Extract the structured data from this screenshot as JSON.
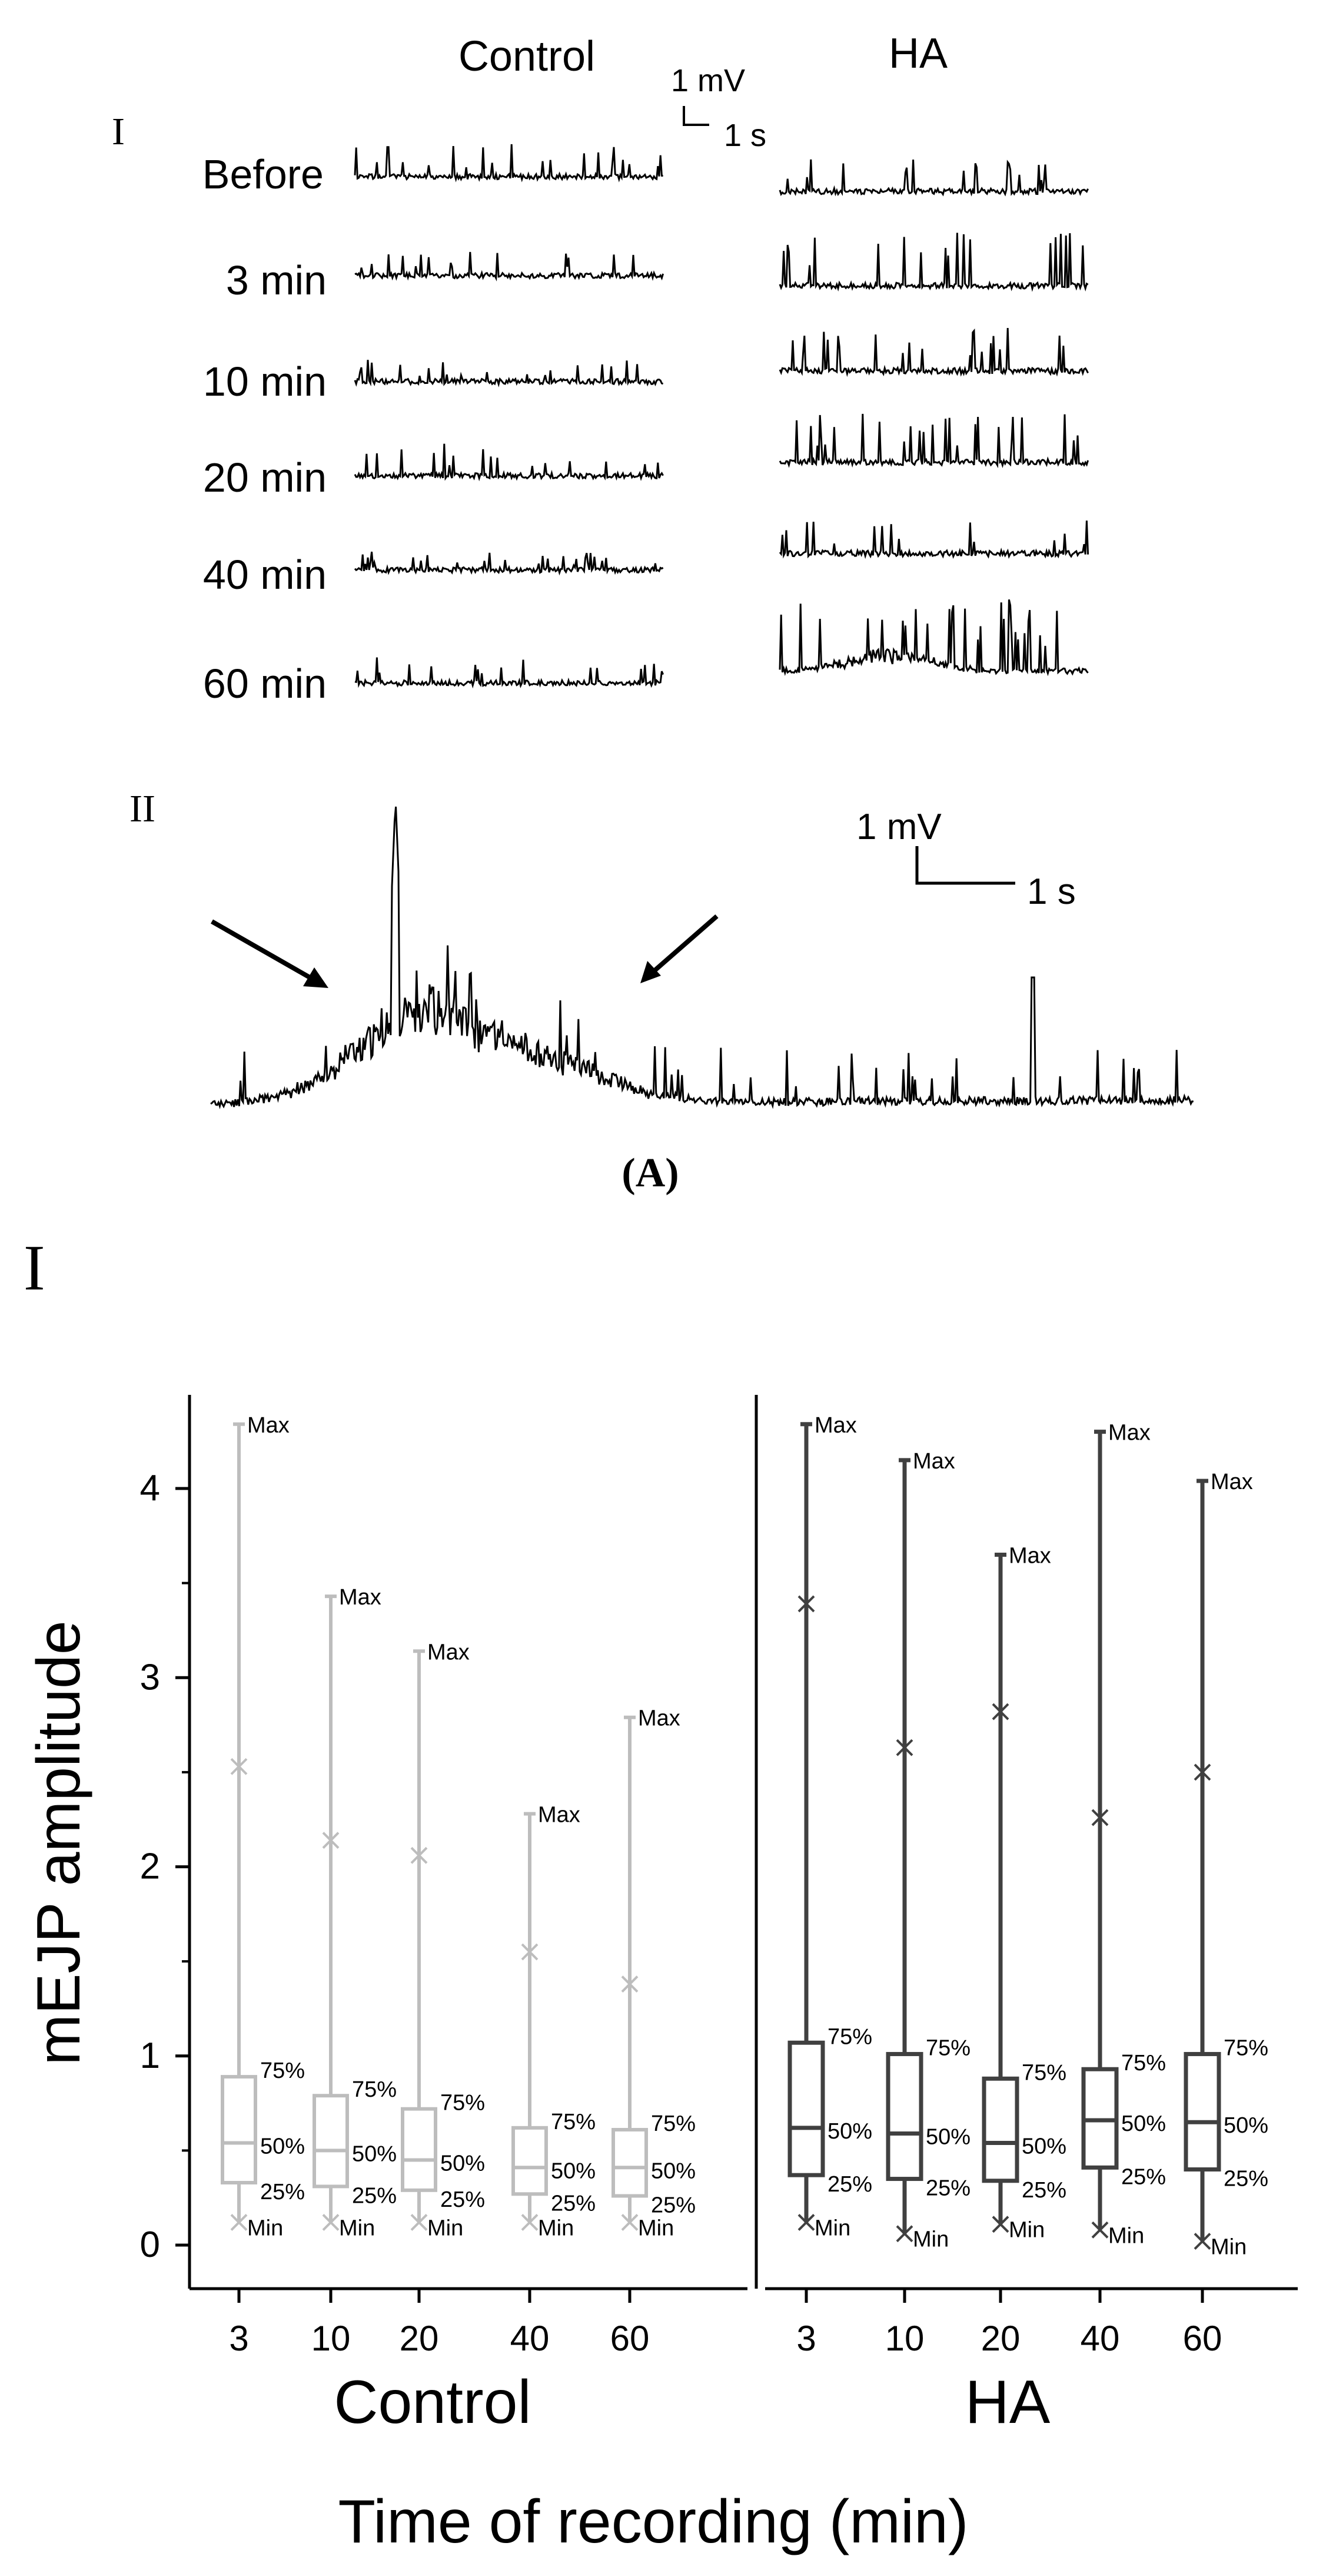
{
  "panel_a": {
    "label": "(A)",
    "part_one_label": "I",
    "part_two_label": "II",
    "column_control": "Control",
    "column_ha": "HA",
    "scale_mv": "1 mV",
    "scale_s": "1 s",
    "rows": [
      "Before",
      "3 min",
      "10 min",
      "20 min",
      "40 min",
      "60 min"
    ]
  },
  "panel_b": {
    "part_label": "I"
  },
  "chart_data": {
    "type": "box",
    "ylabel": "mEJP amplitude",
    "xlabel": "Time of recording (min)",
    "ylim": [
      -0.15,
      4.45
    ],
    "yticks": [
      0,
      1,
      2,
      3,
      4
    ],
    "box_labels": {
      "max": "Max",
      "min": "Min",
      "q3": "75%",
      "median": "50%",
      "q1": "25%"
    },
    "groups": [
      {
        "name": "Control",
        "color": "#bdbdbd",
        "categories": [
          "3",
          "10",
          "20",
          "40",
          "60"
        ],
        "boxes": [
          {
            "min": 0.12,
            "q1": 0.33,
            "median": 0.54,
            "q3": 0.89,
            "max": 4.34,
            "marker": 2.53
          },
          {
            "min": 0.12,
            "q1": 0.31,
            "median": 0.5,
            "q3": 0.79,
            "max": 3.43,
            "marker": 2.14
          },
          {
            "min": 0.12,
            "q1": 0.29,
            "median": 0.45,
            "q3": 0.72,
            "max": 3.14,
            "marker": 2.06
          },
          {
            "min": 0.12,
            "q1": 0.27,
            "median": 0.41,
            "q3": 0.62,
            "max": 2.28,
            "marker": 1.55
          },
          {
            "min": 0.12,
            "q1": 0.26,
            "median": 0.41,
            "q3": 0.61,
            "max": 2.79,
            "marker": 1.38
          }
        ]
      },
      {
        "name": "HA",
        "color": "#404040",
        "categories": [
          "3",
          "10",
          "20",
          "40",
          "60"
        ],
        "boxes": [
          {
            "min": 0.12,
            "q1": 0.37,
            "median": 0.62,
            "q3": 1.07,
            "max": 4.34,
            "marker": 3.39
          },
          {
            "min": 0.06,
            "q1": 0.35,
            "median": 0.59,
            "q3": 1.01,
            "max": 4.15,
            "marker": 2.63
          },
          {
            "min": 0.11,
            "q1": 0.34,
            "median": 0.54,
            "q3": 0.88,
            "max": 3.65,
            "marker": 2.82
          },
          {
            "min": 0.08,
            "q1": 0.41,
            "median": 0.66,
            "q3": 0.93,
            "max": 4.3,
            "marker": 2.26
          },
          {
            "min": 0.02,
            "q1": 0.4,
            "median": 0.65,
            "q3": 1.01,
            "max": 4.04,
            "marker": 2.5
          }
        ]
      }
    ]
  }
}
